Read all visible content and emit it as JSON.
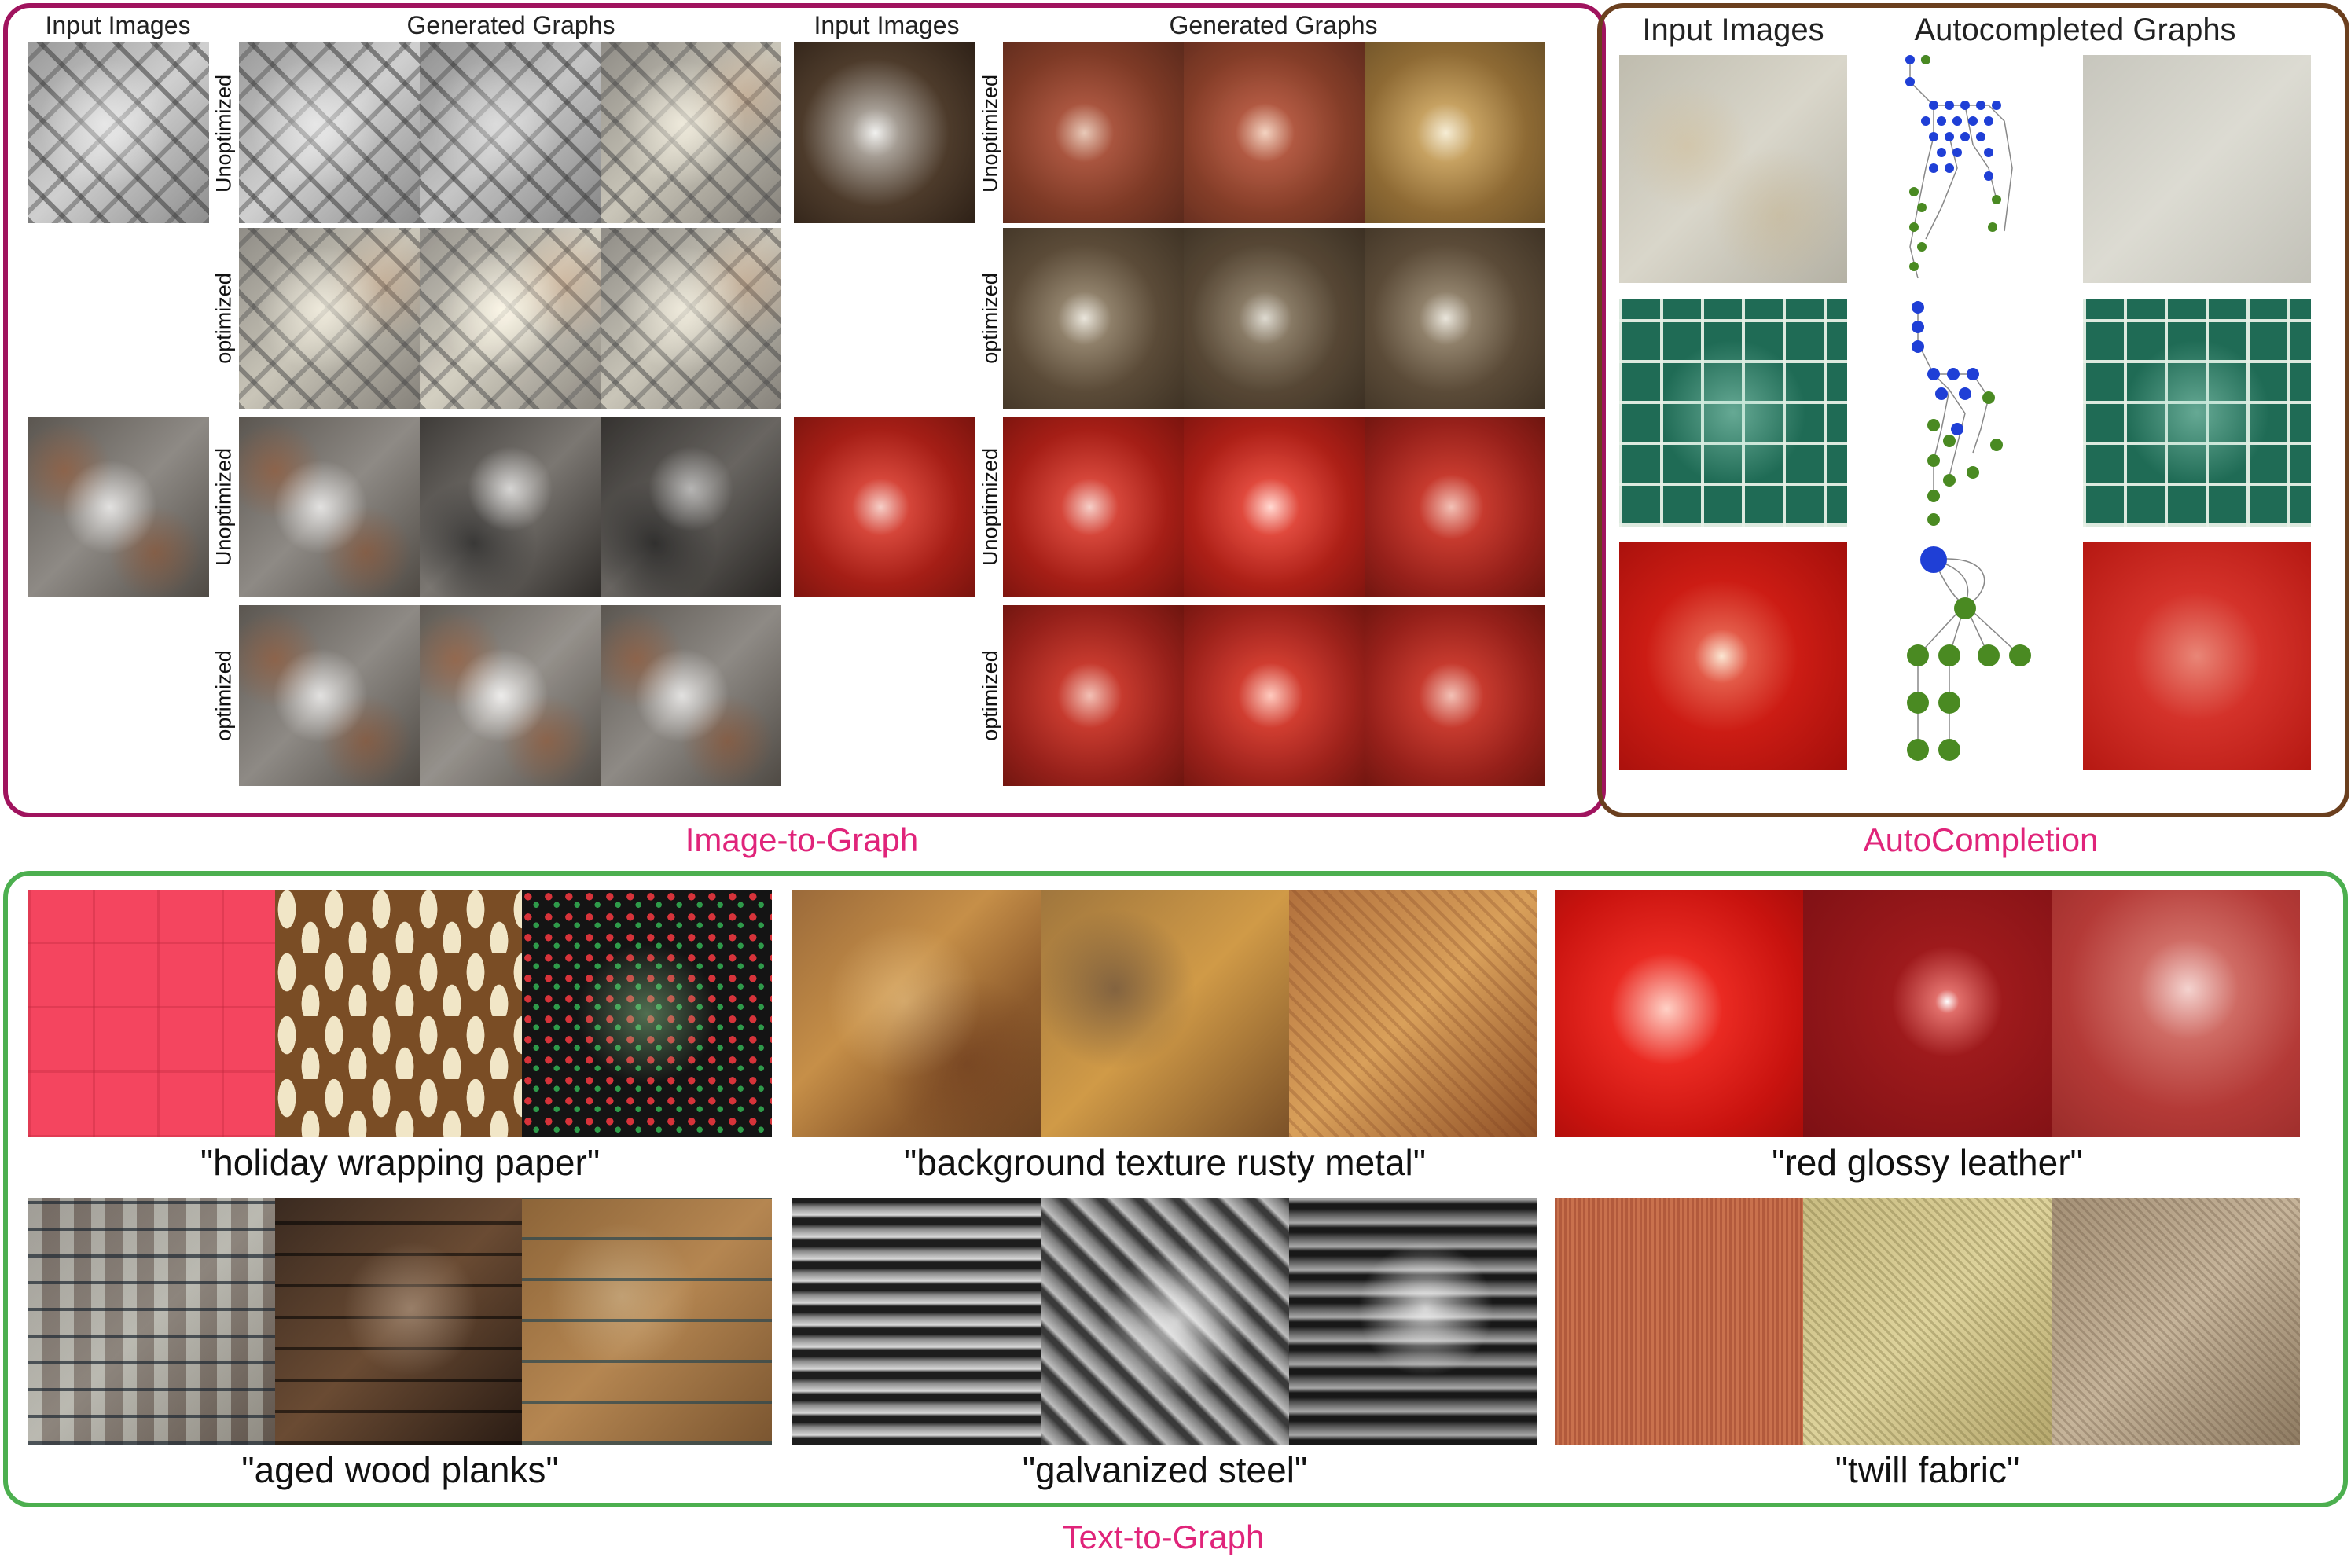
{
  "image_to_graph": {
    "section_label": "Image-to-Graph",
    "left_group": {
      "header_input": "Input Images",
      "header_generated": "Generated Graphs"
    },
    "right_group": {
      "header_input": "Input Images",
      "header_generated": "Generated Graphs"
    },
    "row_labels": {
      "unoptimized": "Unoptimized",
      "optimized": "optimized"
    }
  },
  "autocompletion": {
    "section_label": "AutoCompletion",
    "header_input": "Input Images",
    "header_graphs": "Autocompleted Graphs"
  },
  "text_to_graph": {
    "section_label": "Text-to-Graph",
    "prompts": [
      "\"holiday wrapping paper\"",
      "\"background texture rusty metal\"",
      "\"red glossy leather\"",
      "\"aged wood planks\"",
      "\"galvanized steel\"",
      "\"twill fabric\""
    ]
  },
  "colors": {
    "image_to_graph_border": "#a0135e",
    "autocompletion_border": "#6b3f1e",
    "text_to_graph_border": "#4caf4f",
    "section_label": "#e0247a",
    "graph_node_blue": "#1f3fd6",
    "graph_node_green": "#4a8a22"
  }
}
